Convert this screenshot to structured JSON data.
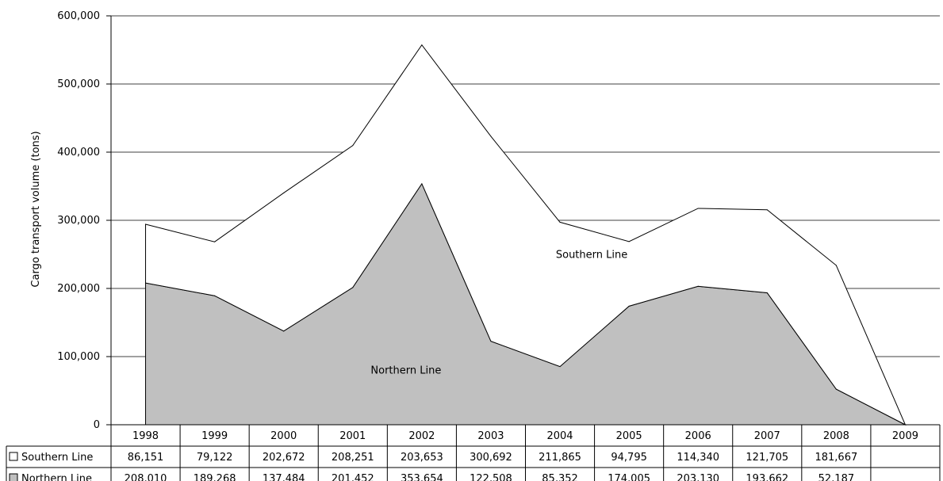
{
  "chart_data": {
    "type": "area",
    "stacked": true,
    "title": "",
    "xlabel": "",
    "ylabel": "Cargo transport volume (tons)",
    "ylim": [
      0,
      600000
    ],
    "yticks": [
      0,
      100000,
      200000,
      300000,
      400000,
      500000,
      600000
    ],
    "ytick_labels": [
      "0",
      "100,000",
      "200,000",
      "300,000",
      "400,000",
      "500,000",
      "600,000"
    ],
    "grid": true,
    "categories": [
      "1998",
      "1999",
      "2000",
      "2001",
      "2002",
      "2003",
      "2004",
      "2005",
      "2006",
      "2007",
      "2008",
      "2009"
    ],
    "series": [
      {
        "name": "Northern Line",
        "color": "#c0c0c0",
        "values": [
          208010,
          189268,
          137484,
          201452,
          353654,
          122508,
          85352,
          174005,
          203130,
          193662,
          52187,
          0
        ],
        "labels": [
          "208,010",
          "189,268",
          "137,484",
          "201,452",
          "353,654",
          "122,508",
          "85,352",
          "174,005",
          "203,130",
          "193,662",
          "52,187",
          ""
        ]
      },
      {
        "name": "Southern Line",
        "color": "#ffffff",
        "values": [
          86151,
          79122,
          202672,
          208251,
          203653,
          300692,
          211865,
          94795,
          114340,
          121705,
          181667,
          0
        ],
        "labels": [
          "86,151",
          "79,122",
          "202,672",
          "208,251",
          "203,653",
          "300,692",
          "211,865",
          "94,795",
          "114,340",
          "121,705",
          "181,667",
          ""
        ]
      }
    ],
    "annotations": [
      {
        "text": "Southern Line",
        "series": "Southern Line"
      },
      {
        "text": "Northern Line",
        "series": "Northern Line"
      }
    ],
    "data_table": true
  }
}
